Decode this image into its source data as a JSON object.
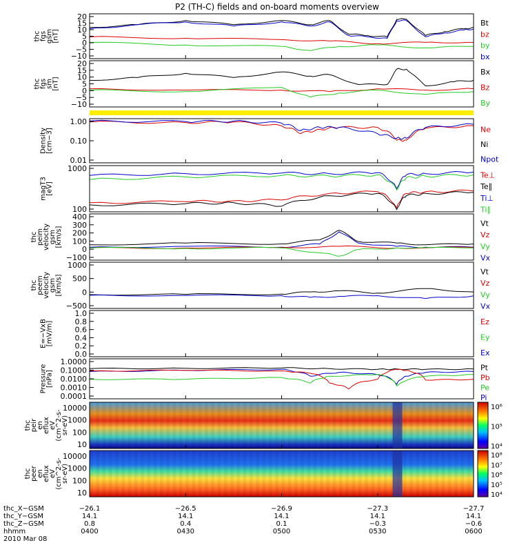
{
  "title": "P2 (TH-C) fields and on-board moments overview",
  "colors": {
    "black": "#000000",
    "red": "#dd0000",
    "green": "#22cc22",
    "blue": "#0000cc",
    "yellow": "#ffee00",
    "mag": "#ff00ff"
  },
  "chart_data": [
    {
      "type": "line",
      "id": "fgs_gsm",
      "ylabel": [
        "thc",
        "fgs",
        "gsm",
        "[nT]"
      ],
      "yticks": [
        "20",
        "15",
        "10",
        "5",
        "0",
        "−5",
        "−10"
      ],
      "ylim": [
        -12,
        21
      ],
      "legend": [
        {
          "name": "Bt",
          "color": "#000000"
        },
        {
          "name": "bz",
          "color": "#dd0000"
        },
        {
          "name": "by",
          "color": "#22cc22"
        },
        {
          "name": "bx",
          "color": "#0000cc"
        }
      ],
      "series": [
        {
          "name": "Bt",
          "color": "#000000",
          "x": [
            4.0,
            4.25,
            4.5,
            4.75,
            5.0,
            5.15,
            5.25,
            5.35,
            5.45,
            5.55,
            5.6,
            5.65,
            5.75,
            5.85,
            5.95,
            6.0
          ],
          "y": [
            11,
            13,
            16,
            13,
            16,
            13,
            16,
            6,
            5,
            4,
            17,
            17,
            5,
            8,
            10,
            11
          ]
        },
        {
          "name": "bx",
          "color": "#0000cc",
          "x": [
            4.0,
            4.25,
            4.5,
            4.75,
            5.0,
            5.15,
            5.25,
            5.35,
            5.45,
            5.55,
            5.6,
            5.65,
            5.75,
            5.85,
            5.95,
            6.0
          ],
          "y": [
            10,
            13,
            15,
            12,
            15,
            12,
            15,
            5,
            4,
            3,
            16,
            16,
            4,
            7,
            9,
            10
          ]
        },
        {
          "name": "bz",
          "color": "#dd0000",
          "x": [
            4.0,
            4.5,
            5.0,
            5.25,
            5.5,
            5.75,
            6.0
          ],
          "y": [
            4,
            3,
            2,
            1,
            -1,
            0,
            0
          ]
        },
        {
          "name": "by",
          "color": "#22cc22",
          "x": [
            4.0,
            4.5,
            5.0,
            5.15,
            5.3,
            5.5,
            5.75,
            6.0
          ],
          "y": [
            0,
            -2,
            -3,
            -6,
            -3,
            -2,
            -4,
            -3
          ]
        }
      ]
    },
    {
      "type": "line",
      "id": "fgs_sm",
      "ylabel": [
        "thc",
        "fgs",
        "sm",
        "[nT]"
      ],
      "yticks": [
        "20",
        "15",
        "10",
        "5",
        "0",
        "−5",
        "−10"
      ],
      "ylim": [
        -12,
        21
      ],
      "legend": [
        {
          "name": "Bx",
          "color": "#000000"
        },
        {
          "name": "Bz",
          "color": "#dd0000"
        },
        {
          "name": "By",
          "color": "#22cc22"
        }
      ],
      "series": [
        {
          "name": "Bx",
          "color": "#000000",
          "x": [
            4.0,
            4.25,
            4.5,
            4.75,
            5.0,
            5.15,
            5.25,
            5.4,
            5.55,
            5.6,
            5.65,
            5.75,
            5.9,
            6.0
          ],
          "y": [
            7,
            9,
            12,
            9,
            13,
            10,
            11,
            4,
            4,
            15,
            15,
            3,
            6,
            7
          ]
        },
        {
          "name": "Bz",
          "color": "#dd0000",
          "x": [
            4.0,
            4.5,
            5.0,
            5.25,
            5.5,
            5.75,
            6.0
          ],
          "y": [
            1,
            0,
            0,
            -1,
            1,
            0,
            1
          ]
        },
        {
          "name": "By",
          "color": "#22cc22",
          "x": [
            4.0,
            4.5,
            5.0,
            5.15,
            5.3,
            5.5,
            5.75,
            6.0
          ],
          "y": [
            0,
            -1,
            2,
            -5,
            -2,
            0,
            -3,
            -1
          ]
        }
      ]
    },
    {
      "type": "line",
      "id": "density",
      "scale": "log",
      "ylabel": [
        "Density",
        "[cm−3]"
      ],
      "yticks": [
        "1.00",
        "0.10",
        "0.01"
      ],
      "ylim": [
        0.01,
        1.3
      ],
      "legend": [
        {
          "name": "Ne",
          "color": "#dd0000"
        },
        {
          "name": "Ni",
          "color": "#000000"
        },
        {
          "name": "Npot",
          "color": "#0000cc"
        }
      ],
      "series": [
        {
          "name": "Ne",
          "color": "#dd0000",
          "x": [
            4.0,
            4.5,
            4.75,
            5.0,
            5.1,
            5.2,
            5.3,
            5.5,
            5.6,
            5.65,
            5.75,
            6.0
          ],
          "y": [
            0.9,
            0.85,
            0.9,
            0.6,
            0.25,
            0.4,
            0.5,
            0.5,
            0.12,
            0.12,
            0.45,
            0.6
          ]
        },
        {
          "name": "Npot",
          "color": "#0000cc",
          "x": [
            4.0,
            4.5,
            4.75,
            5.0,
            5.1,
            5.2,
            5.3,
            5.5,
            5.6,
            5.65,
            5.75,
            6.0
          ],
          "y": [
            1.0,
            0.95,
            1.0,
            0.8,
            0.35,
            0.5,
            0.5,
            0.25,
            0.15,
            0.15,
            0.5,
            0.7
          ]
        }
      ]
    },
    {
      "type": "line",
      "id": "mag_t",
      "scale": "log",
      "ylabel": [
        "magT3",
        "[eV]"
      ],
      "yticks": [
        "1000",
        "100"
      ],
      "ylim": [
        40,
        4000
      ],
      "legend": [
        {
          "name": "Te⊥",
          "color": "#dd0000"
        },
        {
          "name": "Te∥",
          "color": "#000000"
        },
        {
          "name": "Ti⊥",
          "color": "#0000cc"
        },
        {
          "name": "Ti∥",
          "color": "#22cc22"
        }
      ],
      "series": [
        {
          "name": "Ti⊥",
          "color": "#0000cc",
          "x": [
            4.0,
            4.5,
            5.0,
            5.25,
            5.5,
            5.6,
            5.65,
            5.75,
            6.0
          ],
          "y": [
            1500,
            1800,
            1900,
            1800,
            2000,
            400,
            1600,
            1800,
            2100
          ]
        },
        {
          "name": "Ti∥",
          "color": "#22cc22",
          "x": [
            4.0,
            4.5,
            5.0,
            5.25,
            5.5,
            5.6,
            5.65,
            5.75,
            6.0
          ],
          "y": [
            1000,
            1300,
            1500,
            1400,
            1600,
            350,
            1200,
            1400,
            1600
          ]
        },
        {
          "name": "Te⊥",
          "color": "#dd0000",
          "x": [
            4.0,
            4.5,
            4.75,
            5.0,
            5.25,
            5.5,
            5.6,
            5.65,
            5.75,
            6.0
          ],
          "y": [
            100,
            110,
            120,
            130,
            250,
            300,
            60,
            250,
            300,
            320
          ]
        },
        {
          "name": "Te∥",
          "color": "#000000",
          "x": [
            4.0,
            4.5,
            4.75,
            5.0,
            5.25,
            5.5,
            5.6,
            5.65,
            5.75,
            6.0
          ],
          "y": [
            80,
            90,
            100,
            70,
            200,
            250,
            50,
            200,
            250,
            280
          ]
        }
      ]
    },
    {
      "type": "line",
      "id": "peim_velocity",
      "ylabel": [
        "thc",
        "peim",
        "velocity",
        "gsm",
        "[km/s]"
      ],
      "yticks": [
        "400",
        "300",
        "200",
        "100",
        "0",
        "−100"
      ],
      "ylim": [
        -150,
        420
      ],
      "legend": [
        {
          "name": "Vt",
          "color": "#000000"
        },
        {
          "name": "Vz",
          "color": "#dd0000"
        },
        {
          "name": "Vy",
          "color": "#22cc22"
        },
        {
          "name": "Vx",
          "color": "#0000cc"
        }
      ],
      "series": [
        {
          "name": "Vt",
          "color": "#000000",
          "x": [
            4.0,
            4.5,
            5.0,
            5.2,
            5.3,
            5.4,
            5.6,
            5.75,
            6.0
          ],
          "y": [
            40,
            60,
            50,
            100,
            220,
            80,
            60,
            40,
            50
          ]
        },
        {
          "name": "Vx",
          "color": "#0000cc",
          "x": [
            4.0,
            4.5,
            5.0,
            5.2,
            5.3,
            5.4,
            5.6,
            5.75,
            6.0
          ],
          "y": [
            10,
            20,
            10,
            50,
            200,
            60,
            20,
            10,
            10
          ]
        },
        {
          "name": "Vz",
          "color": "#dd0000",
          "x": [
            4.0,
            4.5,
            5.0,
            5.3,
            5.6,
            6.0
          ],
          "y": [
            0,
            0,
            5,
            20,
            0,
            5
          ]
        },
        {
          "name": "Vy",
          "color": "#22cc22",
          "x": [
            4.0,
            4.5,
            5.0,
            5.2,
            5.3,
            5.4,
            5.6,
            6.0
          ],
          "y": [
            0,
            -5,
            0,
            -60,
            -100,
            -20,
            0,
            0
          ]
        }
      ]
    },
    {
      "type": "line",
      "id": "peem_velocity",
      "ylabel": [
        "thc",
        "peem",
        "velocity",
        "gsm",
        "[km/s]"
      ],
      "yticks": [
        "1000",
        "500",
        "0",
        "−500"
      ],
      "ylim": [
        -600,
        1500
      ],
      "legend": [
        {
          "name": "Vt",
          "color": "#000000"
        },
        {
          "name": "Vz",
          "color": "#dd0000"
        },
        {
          "name": "Vy",
          "color": "#22cc22"
        },
        {
          "name": "Vx",
          "color": "#0000cc"
        }
      ],
      "series": [
        {
          "name": "Vt",
          "color": "#000000",
          "x": [
            4.0,
            4.5,
            5.0,
            5.15,
            5.3,
            5.5,
            5.75,
            6.0
          ],
          "y": [
            30,
            40,
            50,
            150,
            200,
            100,
            300,
            150
          ]
        },
        {
          "name": "Vx",
          "color": "#0000cc",
          "x": [
            4.0,
            4.5,
            5.0,
            5.15,
            5.3,
            5.5,
            5.75,
            6.0
          ],
          "y": [
            0,
            -10,
            -20,
            -100,
            -50,
            -20,
            -150,
            -30
          ]
        }
      ]
    },
    {
      "type": "line",
      "id": "e_vxb",
      "ylabel": [
        "E=−VxB",
        "[mV/m]"
      ],
      "yticks": [
        "1.0",
        "0.8",
        "0.6",
        "0.4",
        "0.2",
        "0.0"
      ],
      "ylim": [
        0,
        1.05
      ],
      "legend": [
        {
          "name": "Ez",
          "color": "#dd0000"
        },
        {
          "name": "Ey",
          "color": "#22cc22"
        },
        {
          "name": "Ex",
          "color": "#0000cc"
        }
      ],
      "series": []
    },
    {
      "type": "line",
      "id": "pressure",
      "scale": "log",
      "ylabel": [
        "Pressure",
        "[nPa]"
      ],
      "yticks": [
        "1.0000",
        "0.1000",
        "0.0100",
        "0.0010",
        "0.0001"
      ],
      "ylim": [
        0.0001,
        1.2
      ],
      "legend": [
        {
          "name": "Pt",
          "color": "#000000"
        },
        {
          "name": "Pb",
          "color": "#dd0000"
        },
        {
          "name": "Pe",
          "color": "#22cc22"
        },
        {
          "name": "Pi",
          "color": "#0000cc"
        }
      ],
      "series": [
        {
          "name": "Pt",
          "color": "#000000",
          "x": [
            4.0,
            4.5,
            5.0,
            5.25,
            5.5,
            5.6,
            5.75,
            6.0
          ],
          "y": [
            0.12,
            0.13,
            0.14,
            0.12,
            0.1,
            0.11,
            0.1,
            0.11
          ]
        },
        {
          "name": "Pi",
          "color": "#0000cc",
          "x": [
            4.0,
            4.5,
            5.0,
            5.15,
            5.3,
            5.5,
            5.6,
            5.65,
            5.75,
            6.0
          ],
          "y": [
            0.06,
            0.08,
            0.1,
            0.02,
            0.05,
            0.03,
            0.003,
            0.02,
            0.05,
            0.06
          ]
        },
        {
          "name": "Pb",
          "color": "#dd0000",
          "x": [
            4.0,
            4.5,
            5.0,
            5.15,
            5.25,
            5.35,
            5.5,
            5.6,
            5.65,
            5.75,
            6.0
          ],
          "y": [
            0.07,
            0.08,
            0.07,
            0.04,
            0.004,
            0.001,
            0.01,
            0.1,
            0.08,
            0.008,
            0.01
          ]
        },
        {
          "name": "Pe",
          "color": "#22cc22",
          "x": [
            4.0,
            4.5,
            5.0,
            5.15,
            5.25,
            5.5,
            5.6,
            5.75,
            6.0
          ],
          "y": [
            0.01,
            0.01,
            0.015,
            0.004,
            0.02,
            0.03,
            0.002,
            0.02,
            0.03
          ]
        }
      ]
    },
    {
      "type": "heatmap",
      "id": "peir_en_eflux",
      "ylabel": [
        "thc",
        "peir",
        "en",
        "eflux",
        "eV",
        "(cm^2-s-",
        "sr-eV)"
      ],
      "yticks": [
        "10000",
        "1000",
        "100",
        "10"
      ],
      "colorbar_ticks": [
        "10⁶",
        "10⁵",
        "10⁴"
      ]
    },
    {
      "type": "heatmap",
      "id": "peer_en_eflux",
      "ylabel": [
        "thc",
        "peer",
        "en",
        "eflux",
        "eV",
        "(cm^2-s-",
        "sr-eV)"
      ],
      "yticks": [
        "10000",
        "1000",
        "100",
        "10"
      ],
      "colorbar_ticks": [
        "10⁸",
        "10⁷",
        "10⁶",
        "10⁵",
        "10⁴"
      ]
    }
  ],
  "x_axis": {
    "rows": [
      {
        "label": "thc_X−GSM",
        "values": [
          "−26.1",
          "−26.5",
          "−26.9",
          "−27.3",
          "−27.7"
        ]
      },
      {
        "label": "thc_Y−GSM",
        "values": [
          "14.1",
          "14.1",
          "14.1",
          "14.1",
          "14.1"
        ]
      },
      {
        "label": "thc_Z−GSM",
        "values": [
          "0.8",
          "0.4",
          "0.1",
          "−0.3",
          "−0.6"
        ]
      },
      {
        "label": "hhmm",
        "values": [
          "0400",
          "0430",
          "0500",
          "0530",
          "0600"
        ]
      }
    ],
    "date": "2010 Mar 08",
    "ticks": [
      4.0,
      4.5,
      5.0,
      5.5,
      6.0
    ],
    "range": [
      4.0,
      6.0
    ]
  }
}
